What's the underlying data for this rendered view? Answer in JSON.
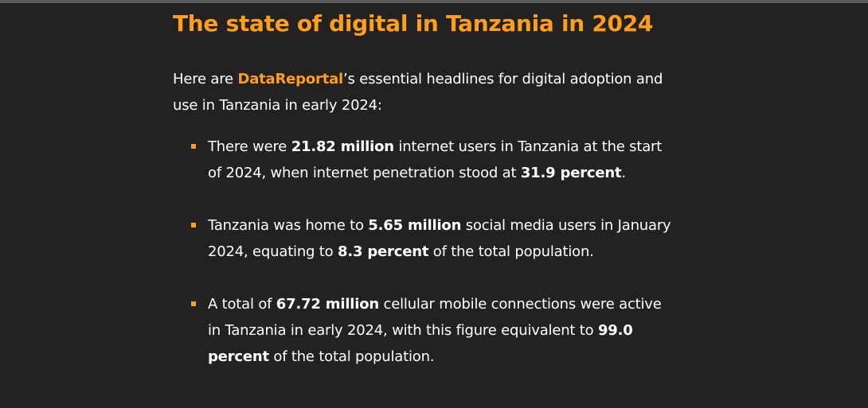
{
  "page": {
    "title": "The state of digital in Tanzania in 2024",
    "intro": {
      "prefix": "Here are ",
      "link_text": "DataReportal",
      "suffix": "’s essential headlines for digital adoption and use in Tanzania in early 2024:"
    },
    "headlines": [
      {
        "t1": "There were ",
        "b1": "21.82 million",
        "t2": " internet users in Tanzania at the start of 2024, when internet penetration stood at ",
        "b2": "31.9 percent",
        "t3": "."
      },
      {
        "t1": "Tanzania was home to ",
        "b1": "5.65 million",
        "t2": " social media users in January 2024, equating to ",
        "b2": "8.3 percent",
        "t3": " of the total population."
      },
      {
        "t1": "A total of ",
        "b1": "67.72 million",
        "t2": " cellular mobile connections were active in Tanzania in early 2024, with this figure equivalent to ",
        "b2": "99.0 percent",
        "t3": " of the total population."
      }
    ]
  },
  "colors": {
    "background": "#222222",
    "accent": "#ff9d1d",
    "text": "#ffffff"
  }
}
